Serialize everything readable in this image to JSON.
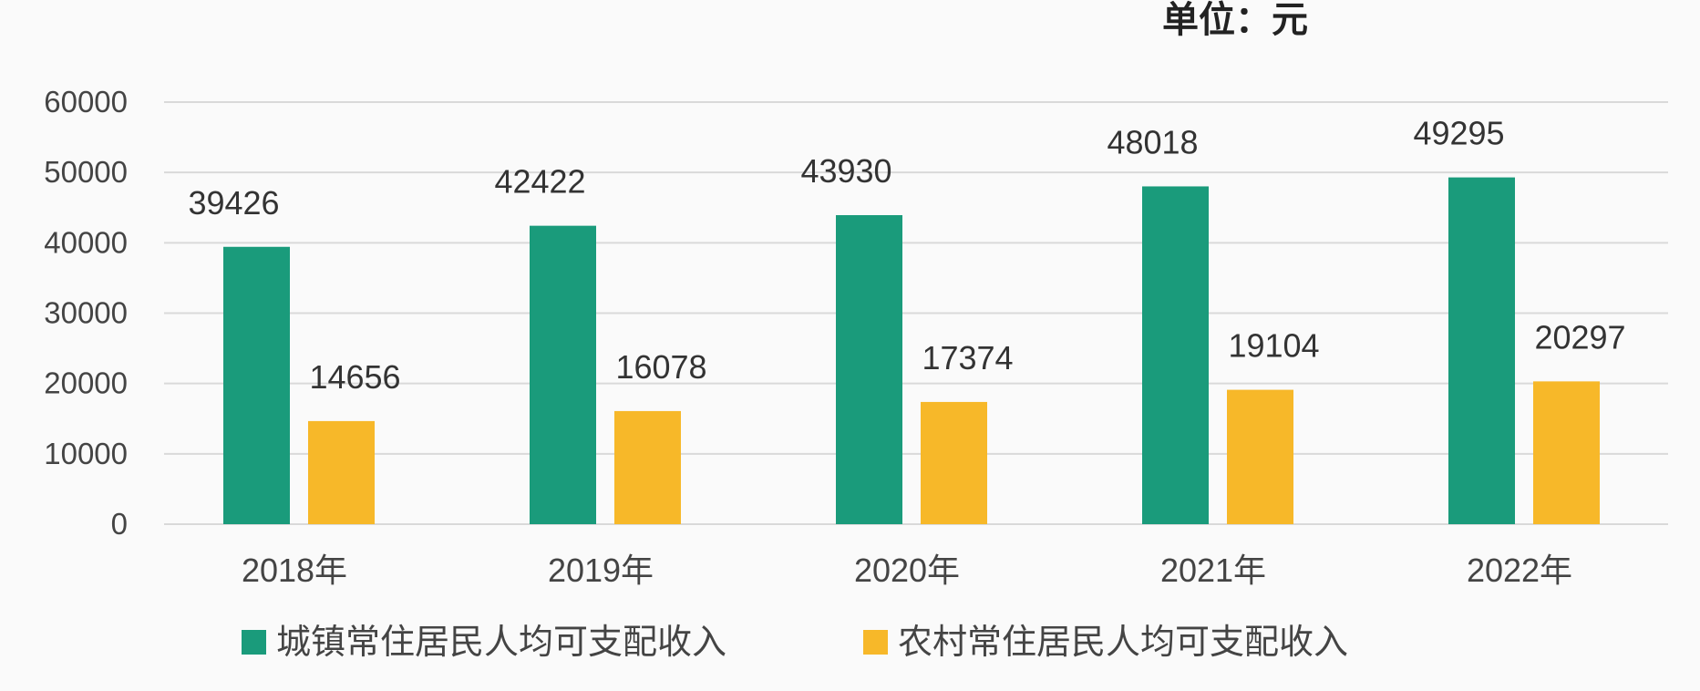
{
  "chart_data": {
    "type": "bar",
    "unit_label": "单位：元",
    "categories": [
      "2018年",
      "2019年",
      "2020年",
      "2021年",
      "2022年"
    ],
    "series": [
      {
        "name": "城镇常住居民人均可支配收入",
        "color": "#1a9b7b",
        "values": [
          39426,
          42422,
          43930,
          48018,
          49295
        ]
      },
      {
        "name": "农村常住居民人均可支配收入",
        "color": "#f7b829",
        "values": [
          14656,
          16078,
          17374,
          19104,
          20297
        ]
      }
    ],
    "yticks": [
      "0",
      "10000",
      "20000",
      "30000",
      "40000",
      "50000",
      "60000"
    ],
    "ylim": [
      0,
      60000
    ],
    "grid": true,
    "legend": "bottom"
  }
}
